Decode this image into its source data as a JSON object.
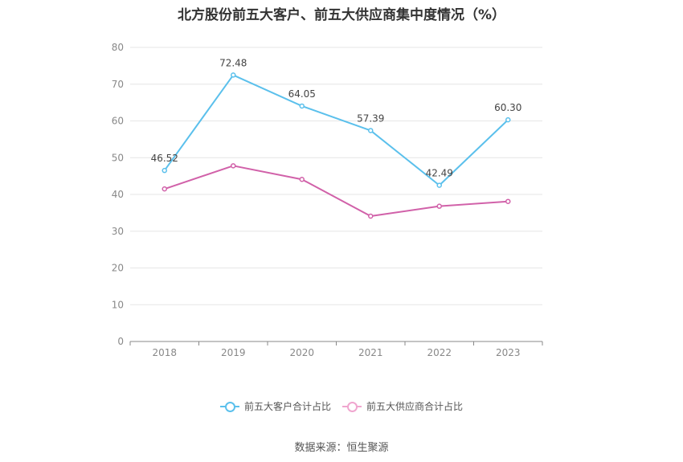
{
  "chart_data": {
    "type": "line",
    "title": "北方股份前五大客户、前五大供应商集中度情况（%）",
    "categories": [
      "2018",
      "2019",
      "2020",
      "2021",
      "2022",
      "2023"
    ],
    "ylim": [
      0,
      80
    ],
    "yticks": [
      "0",
      "10",
      "20",
      "30",
      "40",
      "50",
      "60",
      "70",
      "80"
    ],
    "series": [
      {
        "name": "前五大客户合计占比",
        "color": "#5bc0ec",
        "values": [
          46.52,
          72.48,
          64.05,
          57.39,
          42.49,
          60.3
        ],
        "labels": [
          "46.52",
          "72.48",
          "64.05",
          "57.39",
          "42.49",
          "60.30"
        ]
      },
      {
        "name": "前五大供应商合计占比",
        "color": "#d161a9",
        "values": [
          41.5,
          47.8,
          44.1,
          34.1,
          36.8,
          38.1
        ],
        "labels": null
      }
    ],
    "grid": true,
    "legend": "bottom-center"
  },
  "source_text": "数据来源：恒生聚源"
}
